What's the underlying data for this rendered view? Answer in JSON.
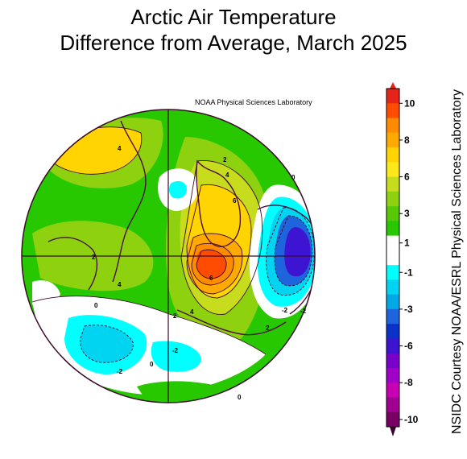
{
  "title": {
    "line1": "Arctic Air Temperature",
    "line2": "Difference from Average, March 2025"
  },
  "map_credit": "NOAA Physical Sciences Laboratory",
  "side_credit": "NSIDC Courtesy NOAA/ESRL Physical Sciences Laboratory",
  "colorbar": {
    "tick_labels": [
      "10",
      "8",
      "6",
      "3",
      "1",
      "-1",
      "-3",
      "-6",
      "-8",
      "-10"
    ],
    "bands_top_to_bottom": [
      "#e8231c",
      "#ff4c00",
      "#ff8c00",
      "#ffaa00",
      "#ffd400",
      "#ffe81a",
      "#c6dc1c",
      "#8ed10f",
      "#58c806",
      "#28c800",
      "#ffffff",
      "#ffffff",
      "#00ffff",
      "#00d4f0",
      "#00a8e6",
      "#1e64dc",
      "#0a32c8",
      "#3c14d2",
      "#7800c8",
      "#a000c8",
      "#c800b4",
      "#a00090",
      "#780064"
    ],
    "arrow_top_color": "#e8231c",
    "arrow_bottom_color": "#3c0032"
  },
  "contour_labels": [
    "4",
    "2",
    "4",
    "6",
    "0",
    "-2",
    "2",
    "4",
    "6",
    "-2",
    "4",
    "2",
    "2",
    "0",
    "-2",
    "0",
    "-2",
    "0"
  ],
  "colors": {
    "green": "#28c800",
    "light_green": "#8ed10f",
    "yellow_green": "#c6dc1c",
    "yellow": "#ffd400",
    "orange": "#ff8c00",
    "red_orange": "#ff4c00",
    "cyan": "#00ffff",
    "light_blue": "#00d4f0",
    "mid_blue": "#00a8e6",
    "blue": "#1e64dc",
    "dark_blue": "#3c14d2",
    "coast": "#4a0f3a"
  }
}
